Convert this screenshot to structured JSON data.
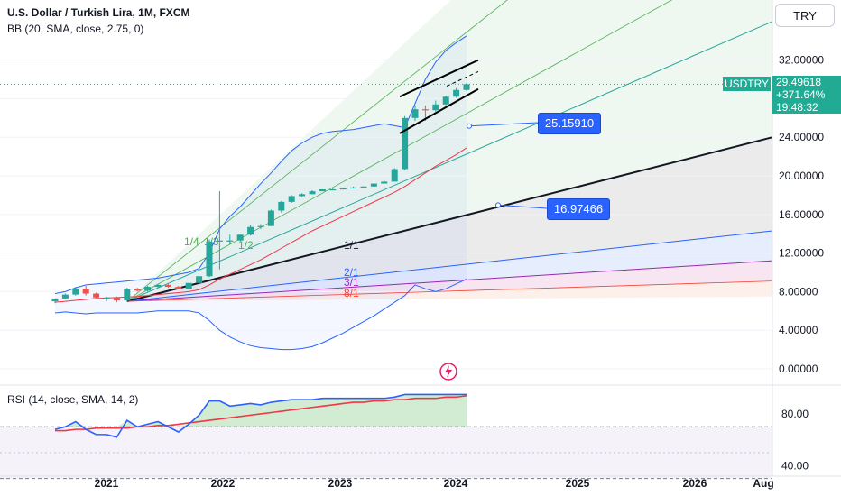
{
  "header": {
    "title": "U.S. Dollar / Turkish Lira, 1M, FXCM",
    "indicator": "BB (20, SMA, close, 2.75, 0)",
    "currency_button": "TRY"
  },
  "price_panel": {
    "symbol": "USDTRY",
    "last_price": "29.49618",
    "change": "+371.64%",
    "countdown": "19:48:32",
    "callout_upper": "25.15910",
    "callout_lower": "16.97466",
    "y_ticks": [
      "32.00000",
      "28.00000",
      "24.00000",
      "20.00000",
      "16.00000",
      "12.00000",
      "8.00000",
      "4.00000",
      "0.00000"
    ],
    "fan_labels": [
      "1/4",
      "1/3",
      "1/2",
      "1/1",
      "2/1",
      "3/1",
      "8/1"
    ]
  },
  "rsi_panel": {
    "title": "RSI (14, close, SMA, 14, 2)",
    "y_ticks": [
      "80.00",
      "40.00"
    ]
  },
  "x_axis": {
    "labels": [
      "2021",
      "2022",
      "2023",
      "2024",
      "2025",
      "2026",
      "Aug"
    ]
  },
  "colors": {
    "up": "#26a69a",
    "down": "#ef5350",
    "bb_upper": "#2962ff",
    "basis": "#f23645",
    "rsi": "#2962ff",
    "rsi_ma": "#f23645",
    "accent": "#2962ff"
  },
  "chart_data": {
    "type": "candlestick",
    "symbol": "USDTRY",
    "interval": "1M",
    "ylim": [
      0,
      36
    ],
    "x": [
      "2020-08",
      "2020-09",
      "2020-10",
      "2020-11",
      "2020-12",
      "2021-01",
      "2021-02",
      "2021-03",
      "2021-04",
      "2021-05",
      "2021-06",
      "2021-07",
      "2021-08",
      "2021-09",
      "2021-10",
      "2021-11",
      "2021-12",
      "2022-01",
      "2022-02",
      "2022-03",
      "2022-04",
      "2022-05",
      "2022-06",
      "2022-07",
      "2022-08",
      "2022-09",
      "2022-10",
      "2022-11",
      "2022-12",
      "2023-01",
      "2023-02",
      "2023-03",
      "2023-04",
      "2023-05",
      "2023-06",
      "2023-07",
      "2023-08",
      "2023-09",
      "2023-10",
      "2023-11",
      "2023-12"
    ],
    "candles": [
      {
        "o": 7.0,
        "h": 7.3,
        "l": 6.8,
        "c": 7.3
      },
      {
        "o": 7.3,
        "h": 7.8,
        "l": 7.2,
        "c": 7.7
      },
      {
        "o": 7.7,
        "h": 8.5,
        "l": 7.6,
        "c": 8.3
      },
      {
        "o": 8.3,
        "h": 8.6,
        "l": 7.6,
        "c": 7.8
      },
      {
        "o": 7.8,
        "h": 7.9,
        "l": 7.3,
        "c": 7.4
      },
      {
        "o": 7.4,
        "h": 7.5,
        "l": 7.0,
        "c": 7.4
      },
      {
        "o": 7.4,
        "h": 7.5,
        "l": 6.9,
        "c": 7.1
      },
      {
        "o": 7.1,
        "h": 8.4,
        "l": 7.0,
        "c": 8.3
      },
      {
        "o": 8.3,
        "h": 8.4,
        "l": 8.0,
        "c": 8.1
      },
      {
        "o": 8.1,
        "h": 8.6,
        "l": 8.0,
        "c": 8.5
      },
      {
        "o": 8.5,
        "h": 8.8,
        "l": 8.4,
        "c": 8.7
      },
      {
        "o": 8.7,
        "h": 8.8,
        "l": 8.4,
        "c": 8.5
      },
      {
        "o": 8.5,
        "h": 8.6,
        "l": 8.3,
        "c": 8.3
      },
      {
        "o": 8.3,
        "h": 8.9,
        "l": 8.3,
        "c": 8.9
      },
      {
        "o": 8.9,
        "h": 9.6,
        "l": 8.9,
        "c": 9.6
      },
      {
        "o": 9.6,
        "h": 13.4,
        "l": 9.5,
        "c": 13.2
      },
      {
        "o": 13.2,
        "h": 18.4,
        "l": 10.3,
        "c": 13.3
      },
      {
        "o": 13.3,
        "h": 13.9,
        "l": 12.9,
        "c": 13.3
      },
      {
        "o": 13.3,
        "h": 14.0,
        "l": 13.2,
        "c": 13.9
      },
      {
        "o": 13.9,
        "h": 14.9,
        "l": 13.8,
        "c": 14.7
      },
      {
        "o": 14.7,
        "h": 15.0,
        "l": 14.5,
        "c": 14.8
      },
      {
        "o": 14.8,
        "h": 16.5,
        "l": 14.8,
        "c": 16.4
      },
      {
        "o": 16.4,
        "h": 17.4,
        "l": 16.2,
        "c": 17.3
      },
      {
        "o": 17.3,
        "h": 18.0,
        "l": 17.2,
        "c": 17.9
      },
      {
        "o": 17.9,
        "h": 18.2,
        "l": 17.8,
        "c": 18.1
      },
      {
        "o": 18.1,
        "h": 18.5,
        "l": 18.1,
        "c": 18.4
      },
      {
        "o": 18.4,
        "h": 18.6,
        "l": 18.4,
        "c": 18.6
      },
      {
        "o": 18.6,
        "h": 18.7,
        "l": 18.5,
        "c": 18.6
      },
      {
        "o": 18.6,
        "h": 18.8,
        "l": 18.6,
        "c": 18.7
      },
      {
        "o": 18.7,
        "h": 18.9,
        "l": 18.7,
        "c": 18.8
      },
      {
        "o": 18.8,
        "h": 18.9,
        "l": 18.8,
        "c": 18.9
      },
      {
        "o": 18.9,
        "h": 19.2,
        "l": 18.9,
        "c": 19.2
      },
      {
        "o": 19.2,
        "h": 19.5,
        "l": 19.2,
        "c": 19.4
      },
      {
        "o": 19.4,
        "h": 20.8,
        "l": 19.4,
        "c": 20.7
      },
      {
        "o": 20.7,
        "h": 26.2,
        "l": 20.6,
        "c": 26.0
      },
      {
        "o": 26.0,
        "h": 27.3,
        "l": 25.7,
        "c": 26.9
      },
      {
        "o": 26.9,
        "h": 27.3,
        "l": 25.7,
        "c": 26.8
      },
      {
        "o": 26.8,
        "h": 27.8,
        "l": 26.6,
        "c": 27.4
      },
      {
        "o": 27.4,
        "h": 28.3,
        "l": 27.3,
        "c": 28.2
      },
      {
        "o": 28.2,
        "h": 29.1,
        "l": 28.1,
        "c": 28.9
      },
      {
        "o": 28.9,
        "h": 29.6,
        "l": 28.8,
        "c": 29.5
      }
    ],
    "bb_upper": [
      7.8,
      8.0,
      8.4,
      8.7,
      8.8,
      8.9,
      9.0,
      9.1,
      9.2,
      9.3,
      9.4,
      9.6,
      9.8,
      10.0,
      10.4,
      12.0,
      14.5,
      15.8,
      16.8,
      18.0,
      19.2,
      20.3,
      21.5,
      22.6,
      23.4,
      24.0,
      24.4,
      24.6,
      24.7,
      24.8,
      25.0,
      25.2,
      25.4,
      25.2,
      25.0,
      27.5,
      30.0,
      31.8,
      33.0,
      33.8,
      34.5
    ],
    "bb_basis": [
      6.9,
      7.0,
      7.1,
      7.2,
      7.3,
      7.35,
      7.4,
      7.45,
      7.5,
      7.6,
      7.7,
      7.8,
      7.9,
      8.0,
      8.2,
      8.7,
      9.3,
      9.8,
      10.3,
      10.8,
      11.3,
      11.9,
      12.5,
      13.1,
      13.7,
      14.3,
      14.8,
      15.3,
      15.8,
      16.3,
      16.8,
      17.3,
      17.8,
      18.3,
      18.9,
      19.6,
      20.3,
      21.0,
      21.6,
      22.2,
      22.9
    ],
    "bb_lower": [
      5.8,
      5.9,
      5.8,
      5.7,
      5.8,
      5.8,
      5.8,
      5.8,
      5.8,
      5.9,
      6.0,
      6.0,
      6.0,
      6.0,
      5.8,
      5.0,
      4.0,
      3.3,
      2.8,
      2.4,
      2.2,
      2.1,
      2.0,
      2.0,
      2.1,
      2.3,
      2.7,
      3.2,
      3.7,
      4.3,
      4.9,
      5.5,
      6.2,
      6.9,
      7.6,
      8.7,
      8.3,
      8.0,
      8.3,
      8.8,
      9.3
    ],
    "rsi_visible_range": [
      36,
      96
    ],
    "rsi_ticks": [
      80,
      40
    ],
    "rsi": [
      68,
      70,
      74,
      68,
      64,
      64,
      62,
      75,
      70,
      72,
      74,
      70,
      66,
      72,
      79,
      90,
      90,
      86,
      87,
      88,
      87,
      89,
      90,
      91,
      91,
      91,
      92,
      92,
      92,
      92,
      92,
      92,
      92,
      93,
      95,
      95,
      95,
      95,
      95,
      95,
      95
    ],
    "rsi_ma": [
      67,
      67,
      68,
      68,
      69,
      69,
      69,
      69,
      70,
      70,
      71,
      71,
      72,
      73,
      74,
      75,
      76,
      77,
      78,
      79,
      80,
      81,
      82,
      83,
      84,
      85,
      86,
      87,
      88,
      89,
      89,
      90,
      90,
      91,
      91,
      92,
      92,
      92,
      93,
      93,
      94
    ],
    "annotations": [
      {
        "label": "25.15910",
        "value": 25.1591
      },
      {
        "label": "16.97466",
        "value": 16.97466
      }
    ]
  }
}
